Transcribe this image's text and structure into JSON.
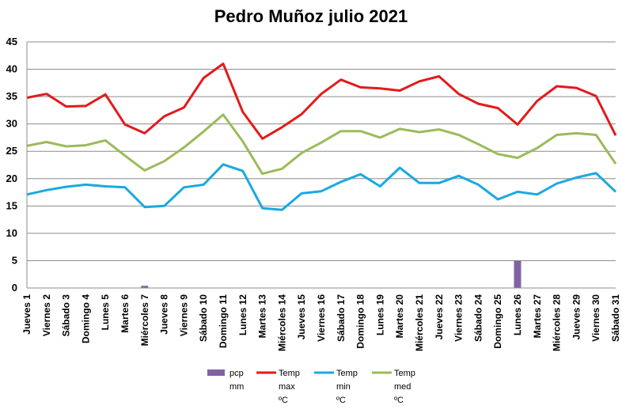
{
  "chart_data": {
    "type": "line",
    "title": "Pedro Muñoz julio 2021",
    "xlabel": "",
    "ylabel": "",
    "ylim": [
      0,
      45
    ],
    "yticks": [
      0,
      5,
      10,
      15,
      20,
      25,
      30,
      35,
      40,
      45
    ],
    "grid": true,
    "legend_position": "bottom",
    "categories": [
      "Jueves 1",
      "Viernes 2",
      "Sábado 3",
      "Domingo 4",
      "Lunes 5",
      "Martes 6",
      "Miércoles 7",
      "Jueves 8",
      "Viernes 9",
      "Sábado 10",
      "Domingo 11",
      "Lunes 12",
      "Martes 13",
      "Miércoles 14",
      "Jueves 15",
      "Viernes 16",
      "Sábado 17",
      "Domingo 18",
      "Lunes 19",
      "Martes 20",
      "Miércoles 21",
      "Jueves 22",
      "Viernes 23",
      "Sábado 24",
      "Domingo 25",
      "Lunes 26",
      "Martes 27",
      "Miércoles 28",
      "Jueves 29",
      "Viernes 30",
      "Sábado 31"
    ],
    "series": [
      {
        "name": "pcp mm",
        "name_lines": [
          "pcp",
          "mm"
        ],
        "kind": "bar",
        "color": "#8064a2",
        "values": [
          0,
          0,
          0,
          0,
          0,
          0,
          0.4,
          0,
          0,
          0,
          0,
          0,
          0,
          0,
          0,
          0,
          0,
          0,
          0,
          0,
          0,
          0,
          0,
          0,
          0,
          5.0,
          0,
          0,
          0,
          0,
          0
        ]
      },
      {
        "name": "Temp max ºC",
        "name_lines": [
          "Temp",
          "max",
          "ºC"
        ],
        "kind": "line",
        "color": "#e31a1c",
        "values": [
          34.8,
          35.5,
          33.2,
          33.3,
          35.4,
          29.9,
          28.3,
          31.4,
          33.0,
          38.4,
          41.0,
          32.2,
          27.3,
          29.4,
          31.8,
          35.5,
          38.1,
          36.7,
          36.5,
          36.1,
          37.8,
          38.7,
          35.5,
          33.7,
          32.9,
          29.9,
          34.2,
          36.9,
          36.6,
          35.1,
          27.9
        ]
      },
      {
        "name": "Temp min ºC",
        "name_lines": [
          "Temp",
          "min",
          "ºC"
        ],
        "kind": "line",
        "color": "#1aa9e0",
        "values": [
          17.1,
          17.9,
          18.5,
          18.9,
          18.6,
          18.4,
          14.8,
          15.0,
          18.4,
          18.9,
          22.6,
          21.4,
          14.6,
          14.3,
          17.3,
          17.7,
          19.4,
          20.8,
          18.6,
          22.0,
          19.2,
          19.2,
          20.5,
          18.9,
          16.2,
          17.6,
          17.1,
          19.1,
          20.2,
          21.0,
          17.6
        ]
      },
      {
        "name": "Temp med ºC",
        "name_lines": [
          "Temp",
          "med",
          "ºC"
        ],
        "kind": "line",
        "color": "#9bbb59",
        "values": [
          26.0,
          26.7,
          25.9,
          26.1,
          27.0,
          24.2,
          21.5,
          23.2,
          25.7,
          28.6,
          31.7,
          26.8,
          20.9,
          21.8,
          24.7,
          26.6,
          28.7,
          28.7,
          27.5,
          29.1,
          28.5,
          29.0,
          28.0,
          26.3,
          24.5,
          23.8,
          25.6,
          28.0,
          28.3,
          28.0,
          22.7
        ]
      }
    ]
  }
}
